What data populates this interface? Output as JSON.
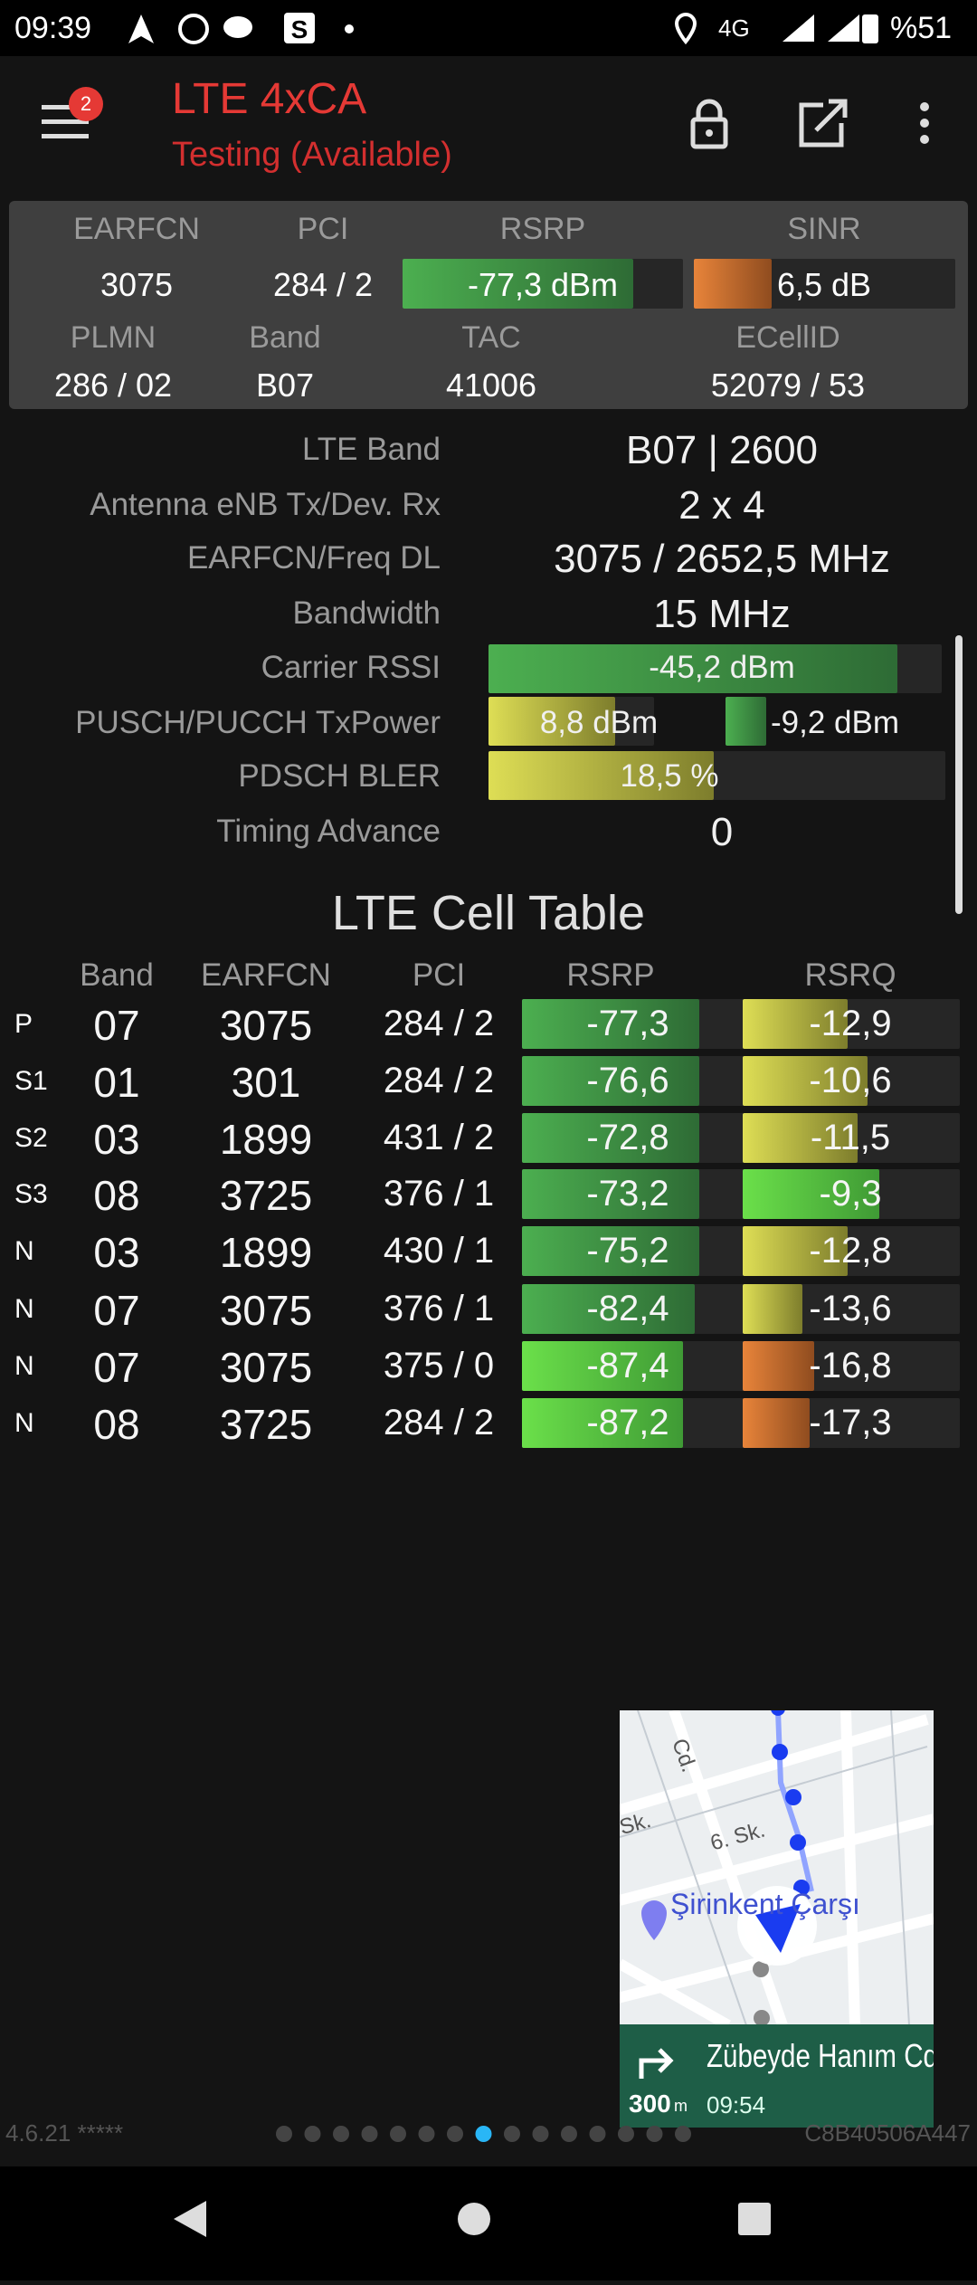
{
  "status_bar": {
    "time": "09:39",
    "network": "4G",
    "battery": "%51"
  },
  "app_bar": {
    "badge": "2",
    "title": "LTE 4xCA",
    "subtitle": "Testing (Available)"
  },
  "summary": {
    "row1": [
      {
        "label": "EARFCN",
        "value": "3075"
      },
      {
        "label": "PCI",
        "value": "284 / 2"
      },
      {
        "label": "RSRP",
        "value": "-77,3 dBm"
      },
      {
        "label": "SINR",
        "value": "6,5 dB"
      }
    ],
    "row2": [
      {
        "label": "PLMN",
        "value": "286 / 02"
      },
      {
        "label": "Band",
        "value": "B07"
      },
      {
        "label": "TAC",
        "value": "41006"
      },
      {
        "label": "ECellID",
        "value": "52079 / 53"
      }
    ]
  },
  "details": [
    {
      "label": "LTE Band",
      "value": "B07 | 2600"
    },
    {
      "label": "Antenna eNB Tx/Dev. Rx",
      "value": "2 x 4"
    },
    {
      "label": "EARFCN/Freq DL",
      "value": "3075 / 2652,5 MHz"
    },
    {
      "label": "Bandwidth",
      "value": "15 MHz"
    },
    {
      "label": "Carrier RSSI",
      "value": "-45,2 dBm"
    },
    {
      "label": "PUSCH/PUCCH TxPower",
      "value": "8,8 dBm",
      "value2": "-9,2 dBm"
    },
    {
      "label": "PDSCH BLER",
      "value": "18,5 %"
    },
    {
      "label": "Timing Advance",
      "value": "0"
    }
  ],
  "cell_table": {
    "title": "LTE Cell Table",
    "header": [
      "Band",
      "EARFCN",
      "PCI",
      "RSRP",
      "RSRQ"
    ],
    "rows": [
      [
        "P",
        "07",
        "3075",
        "284 / 2",
        "-77,3",
        "-12,9"
      ],
      [
        "S1",
        "01",
        "301",
        "284 / 2",
        "-76,6",
        "-10,6"
      ],
      [
        "S2",
        "03",
        "1899",
        "431 / 2",
        "-72,8",
        "-11,5"
      ],
      [
        "S3",
        "08",
        "3725",
        "376 / 1",
        "-73,2",
        "-9,3"
      ],
      [
        "N",
        "03",
        "1899",
        "430 / 1",
        "-75,2",
        "-12,8"
      ],
      [
        "N",
        "07",
        "3075",
        "376 / 1",
        "-82,4",
        "-13,6"
      ],
      [
        "N",
        "07",
        "3075",
        "375 / 0",
        "-87,4",
        "-16,8"
      ],
      [
        "N",
        "08",
        "3725",
        "284 / 2",
        "-87,2",
        "-17,3"
      ]
    ]
  },
  "map": {
    "labels": [
      "Cd.",
      "Sk.",
      "6. Sk.",
      "Şirinkent Çarşı"
    ],
    "distance": "300",
    "unit": "m",
    "street": "Zübeyde Hanım Cd.",
    "eta": "09:54"
  },
  "footer": {
    "version": "4.6.21 *****",
    "device_id": "C8B40506A447"
  }
}
